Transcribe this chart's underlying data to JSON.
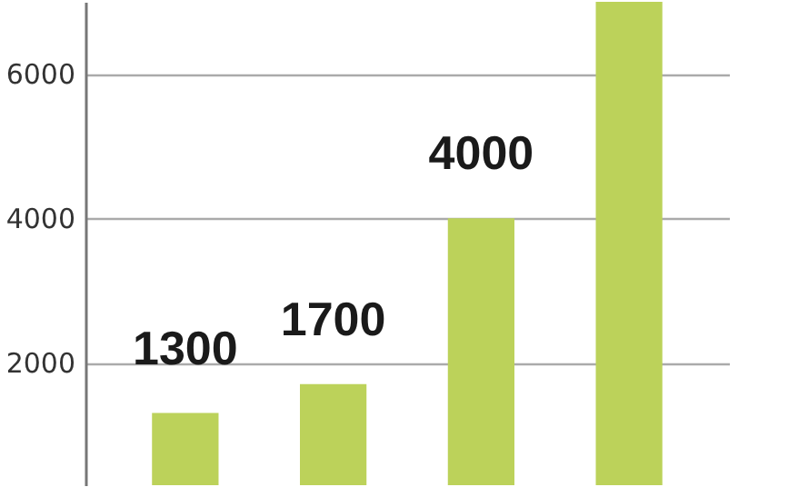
{
  "chart_data": {
    "type": "bar",
    "categories": [
      null,
      null,
      null,
      null
    ],
    "values": [
      1300,
      1700,
      4000,
      7000
    ],
    "value_labels": [
      "1300",
      "1700",
      "4000",
      null
    ],
    "color": "#bcd25a",
    "ylim": [
      300,
      7000
    ],
    "yticks": [
      2000,
      4000,
      6000
    ],
    "grid": "y"
  }
}
